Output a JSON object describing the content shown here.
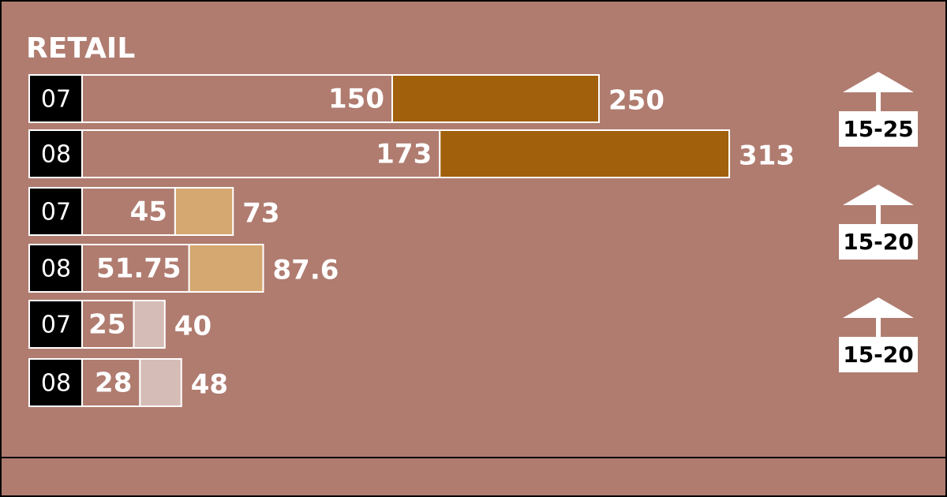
{
  "chart_data": {
    "type": "range-bar",
    "title": "RETAIL",
    "xlim": [
      0,
      350
    ],
    "groups": [
      {
        "color": "#a0600c",
        "badge": "15-25",
        "rows": [
          {
            "label": "07",
            "low": 150,
            "high": 250
          },
          {
            "label": "08",
            "low": 173,
            "high": 313
          }
        ]
      },
      {
        "color": "#d4a870",
        "badge": "15-20",
        "rows": [
          {
            "label": "07",
            "low": 45,
            "high": 73
          },
          {
            "label": "08",
            "low": 51.75,
            "high": 87.6
          }
        ]
      },
      {
        "color": "#d6bcb6",
        "badge": "15-20",
        "rows": [
          {
            "label": "07",
            "low": 25,
            "high": 40
          },
          {
            "label": "08",
            "low": 28,
            "high": 48
          }
        ]
      }
    ]
  }
}
